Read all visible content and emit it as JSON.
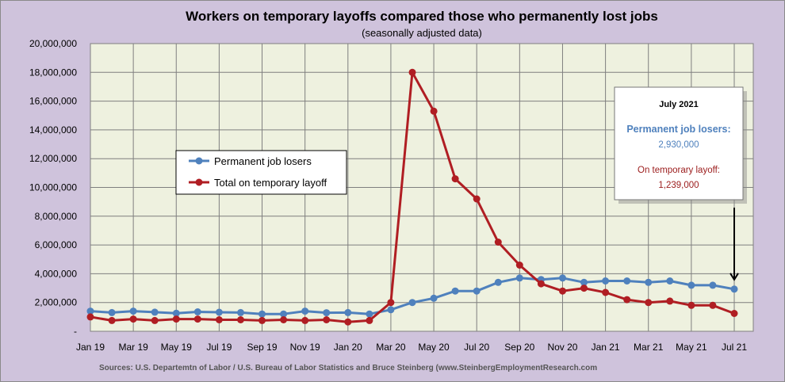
{
  "chart_data": {
    "type": "line",
    "title": "Workers on temporary layoffs compared those who permanently lost jobs",
    "subtitle": "(seasonally adjusted data)",
    "source": "Sources: U.S. Departemtn of Labor / U.S. Bureau of Labor Statistics and Bruce Steinberg (www.SteinbergEmploymentResearch.com",
    "ylim": [
      0,
      20000000
    ],
    "y_ticks": [
      "-",
      "2,000,000",
      "4,000,000",
      "6,000,000",
      "8,000,000",
      "10,000,000",
      "12,000,000",
      "14,000,000",
      "16,000,000",
      "18,000,000",
      "20,000,000"
    ],
    "x": [
      "Jan 19",
      "Feb 19",
      "Mar 19",
      "Apr 19",
      "May 19",
      "Jun 19",
      "Jul 19",
      "Aug 19",
      "Sep 19",
      "Oct 19",
      "Nov 19",
      "Dec 19",
      "Jan 20",
      "Feb 20",
      "Mar 20",
      "Apr 20",
      "May 20",
      "Jun 20",
      "Jul 20",
      "Aug 20",
      "Sep 20",
      "Oct 20",
      "Nov 20",
      "Dec 20",
      "Jan 21",
      "Feb 21",
      "Mar 21",
      "Apr 21",
      "May 21",
      "Jun 21",
      "Jul 21"
    ],
    "x_tick_labels": [
      "Jan 19",
      "Mar 19",
      "May 19",
      "Jul 19",
      "Sep 19",
      "Nov 19",
      "Jan 20",
      "Mar 20",
      "May 20",
      "Jul 20",
      "Sep 20",
      "Nov 20",
      "Jan 21",
      "Mar 21",
      "May 21",
      "Jul 21"
    ],
    "legend_position": "left-center",
    "grid": true,
    "series": [
      {
        "name": "Permanent job losers",
        "color": "#4f81bd",
        "values": [
          1400000,
          1300000,
          1400000,
          1330000,
          1250000,
          1350000,
          1320000,
          1300000,
          1200000,
          1200000,
          1400000,
          1290000,
          1300000,
          1200000,
          1500000,
          2000000,
          2300000,
          2800000,
          2800000,
          3400000,
          3700000,
          3600000,
          3700000,
          3400000,
          3500000,
          3500000,
          3400000,
          3500000,
          3200000,
          3200000,
          2930000
        ]
      },
      {
        "name": "Total on temporary layoff",
        "color": "#b01e23",
        "values": [
          1000000,
          750000,
          850000,
          750000,
          850000,
          850000,
          800000,
          800000,
          750000,
          800000,
          750000,
          800000,
          650000,
          750000,
          2000000,
          18000000,
          15300000,
          10600000,
          9200000,
          6200000,
          4600000,
          3300000,
          2800000,
          3000000,
          2700000,
          2200000,
          2000000,
          2100000,
          1800000,
          1800000,
          1239000
        ]
      }
    ],
    "annotation": {
      "heading": "July 2021",
      "line1_label": "Permanent job losers:",
      "line1_value": "2,930,000",
      "line2_label": "On temporary layoff:",
      "line2_value": "1,239,000",
      "target_month": "Jul 21"
    }
  }
}
